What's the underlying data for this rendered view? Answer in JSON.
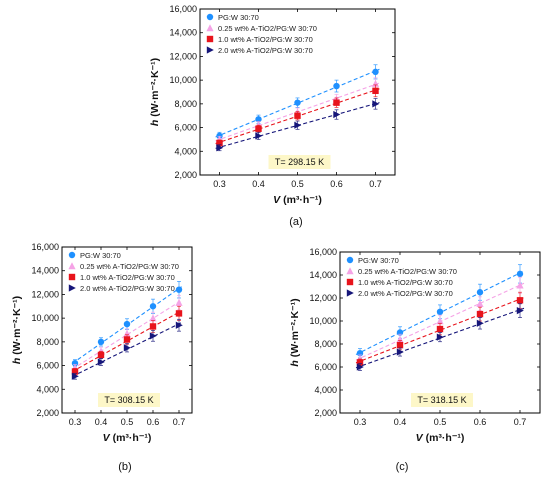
{
  "chart_data": [
    {
      "type": "scatter",
      "caption": "(a)",
      "temperature_label": "T= 298.15 K",
      "xlabel_var": "V",
      "xlabel_unit": " (m³·h⁻¹)",
      "ylabel_var": "h",
      "ylabel_unit": " (W·m⁻²·K⁻¹)",
      "x": [
        0.3,
        0.4,
        0.5,
        0.6,
        0.7
      ],
      "xlim": [
        0.25,
        0.75
      ],
      "ylim": [
        2000,
        16000
      ],
      "xticks": [
        "0.3",
        "0.4",
        "0.5",
        "0.6",
        "0.7"
      ],
      "yticks": [
        "2,000",
        "4,000",
        "6,000",
        "8,000",
        "10,000",
        "12,000",
        "14,000",
        "16,000"
      ],
      "legend_position": "top-left",
      "series": [
        {
          "name": "PG:W 30:70",
          "values": [
            5300,
            6700,
            8100,
            9500,
            10700
          ],
          "errors": [
            300,
            350,
            400,
            500,
            600
          ]
        },
        {
          "name": "0.25 wt% A-TiO2/PG:W 30:70",
          "values": [
            5000,
            6200,
            7300,
            8400,
            9700
          ],
          "errors": [
            250,
            300,
            350,
            400,
            500
          ]
        },
        {
          "name": "1.0 wt% A-TiO2/PG:W 30:70",
          "values": [
            4700,
            5900,
            7000,
            8100,
            9100
          ],
          "errors": [
            250,
            300,
            350,
            400,
            500
          ]
        },
        {
          "name": "2.0 wt% A-TiO2/PG:W 30:70",
          "values": [
            4300,
            5300,
            6200,
            7100,
            8000
          ],
          "errors": [
            250,
            300,
            350,
            400,
            450
          ]
        }
      ]
    },
    {
      "type": "scatter",
      "caption": "(b)",
      "temperature_label": "T= 308.15 K",
      "xlabel_var": "V",
      "xlabel_unit": " (m³·h⁻¹)",
      "ylabel_var": "h",
      "ylabel_unit": " (W·m⁻²·K⁻¹)",
      "x": [
        0.3,
        0.4,
        0.5,
        0.6,
        0.7
      ],
      "xlim": [
        0.25,
        0.75
      ],
      "ylim": [
        2000,
        16000
      ],
      "xticks": [
        "0.3",
        "0.4",
        "0.5",
        "0.6",
        "0.7"
      ],
      "yticks": [
        "2,000",
        "4,000",
        "6,000",
        "8,000",
        "10,000",
        "12,000",
        "14,000",
        "16,000"
      ],
      "legend_position": "top-left",
      "series": [
        {
          "name": "PG:W 30:70",
          "values": [
            6200,
            8000,
            9500,
            11000,
            12400
          ],
          "errors": [
            300,
            350,
            450,
            600,
            700
          ]
        },
        {
          "name": "0.25 wt% A-TiO2/PG:W 30:70",
          "values": [
            5800,
            7200,
            8700,
            10000,
            11300
          ],
          "errors": [
            300,
            350,
            400,
            500,
            600
          ]
        },
        {
          "name": "1.0 wt% A-TiO2/PG:W 30:70",
          "values": [
            5500,
            6900,
            8200,
            9300,
            10400
          ],
          "errors": [
            250,
            300,
            400,
            500,
            600
          ]
        },
        {
          "name": "2.0 wt% A-TiO2/PG:W 30:70",
          "values": [
            5100,
            6300,
            7500,
            8500,
            9400
          ],
          "errors": [
            250,
            300,
            350,
            450,
            500
          ]
        }
      ]
    },
    {
      "type": "scatter",
      "caption": "(c)",
      "temperature_label": "T= 318.15 K",
      "xlabel_var": "V",
      "xlabel_unit": " (m³·h⁻¹)",
      "ylabel_var": "h",
      "ylabel_unit": " (W·m⁻²·K⁻¹)",
      "x": [
        0.3,
        0.4,
        0.5,
        0.6,
        0.7
      ],
      "xlim": [
        0.25,
        0.75
      ],
      "ylim": [
        2000,
        16000
      ],
      "xticks": [
        "0.3",
        "0.4",
        "0.5",
        "0.6",
        "0.7"
      ],
      "yticks": [
        "2,000",
        "4,000",
        "6,000",
        "8,000",
        "10,000",
        "12,000",
        "14,000",
        "16,000"
      ],
      "legend_position": "top-left",
      "series": [
        {
          "name": "PG:W 30:70",
          "values": [
            7200,
            9000,
            10800,
            12500,
            14100
          ],
          "errors": [
            400,
            500,
            600,
            700,
            800
          ]
        },
        {
          "name": "0.25 wt% A-TiO2/PG:W 30:70",
          "values": [
            6700,
            8400,
            10000,
            11500,
            13100
          ],
          "errors": [
            350,
            450,
            500,
            600,
            700
          ]
        },
        {
          "name": "1.0 wt% A-TiO2/PG:W 30:70",
          "values": [
            6400,
            7900,
            9300,
            10600,
            11800
          ],
          "errors": [
            300,
            400,
            500,
            600,
            700
          ]
        },
        {
          "name": "2.0 wt% A-TiO2/PG:W 30:70",
          "values": [
            6000,
            7300,
            8600,
            9800,
            10900
          ],
          "errors": [
            300,
            350,
            400,
            500,
            600
          ]
        }
      ]
    }
  ],
  "styles": {
    "series_colors": [
      "#1e90ff",
      "#f5a3e6",
      "#e8141c",
      "#16167a"
    ],
    "series_markers": [
      "circle",
      "triangle-up",
      "square",
      "triangle-right"
    ],
    "temperature_box_fill": "#fdf7c8",
    "frame_color": "#000000"
  }
}
